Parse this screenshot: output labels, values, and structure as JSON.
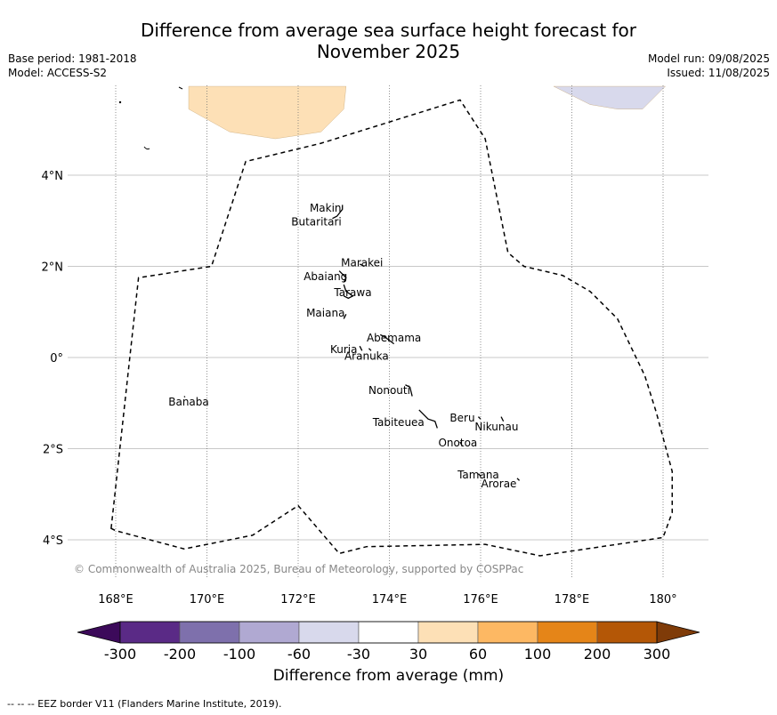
{
  "title": {
    "line1": "Difference from average sea surface height forecast for",
    "line2": "November 2025"
  },
  "meta_left": {
    "base_period": "Base period: 1981-2018",
    "model": "Model: ACCESS-S2"
  },
  "meta_right": {
    "model_run": "Model run: 09/08/2025",
    "issued": "Issued: 11/08/2025"
  },
  "map": {
    "lon_ticks": [
      "168°E",
      "170°E",
      "172°E",
      "174°E",
      "176°E",
      "178°E",
      "180°"
    ],
    "lat_ticks": [
      "4°N",
      "2°N",
      "0°",
      "2°S",
      "4°S"
    ],
    "copyright": "© Commonwealth of Australia 2025, Bureau of Meteorology, supported by COSPPac",
    "places": [
      {
        "name": "Makin",
        "lon": 172.6,
        "lat": 3.2
      },
      {
        "name": "Butaritari",
        "lon": 172.4,
        "lat": 2.9
      },
      {
        "name": "Marakei",
        "lon": 173.4,
        "lat": 2.0
      },
      {
        "name": "Abaiang",
        "lon": 172.6,
        "lat": 1.7
      },
      {
        "name": "Tarawa",
        "lon": 173.2,
        "lat": 1.35
      },
      {
        "name": "Maiana",
        "lon": 172.6,
        "lat": 0.9
      },
      {
        "name": "Abemama",
        "lon": 174.1,
        "lat": 0.35
      },
      {
        "name": "Kuria",
        "lon": 173.0,
        "lat": 0.1
      },
      {
        "name": "Aranuka",
        "lon": 173.5,
        "lat": -0.05
      },
      {
        "name": "Nonouti",
        "lon": 174.0,
        "lat": -0.8
      },
      {
        "name": "Banaba",
        "lon": 169.6,
        "lat": -1.05
      },
      {
        "name": "Beru",
        "lon": 175.6,
        "lat": -1.4
      },
      {
        "name": "Nikunau",
        "lon": 176.35,
        "lat": -1.6
      },
      {
        "name": "Tabiteuea",
        "lon": 174.2,
        "lat": -1.5
      },
      {
        "name": "Onotoa",
        "lon": 175.5,
        "lat": -1.95
      },
      {
        "name": "Tamana",
        "lon": 175.95,
        "lat": -2.65
      },
      {
        "name": "Arorae",
        "lon": 176.4,
        "lat": -2.85
      }
    ],
    "eez_border": [
      [
        167.9,
        -3.75
      ],
      [
        168.5,
        1.75
      ],
      [
        170.1,
        2.0
      ],
      [
        170.85,
        4.3
      ],
      [
        172.5,
        4.7
      ],
      [
        175.55,
        5.65
      ],
      [
        176.1,
        4.8
      ],
      [
        176.6,
        2.3
      ],
      [
        176.95,
        2.0
      ],
      [
        177.8,
        1.8
      ],
      [
        178.4,
        1.45
      ],
      [
        179.0,
        0.85
      ],
      [
        179.6,
        -0.4
      ],
      [
        179.85,
        -1.2
      ],
      [
        180.2,
        -2.5
      ],
      [
        180.2,
        -3.4
      ],
      [
        180.0,
        -3.95
      ],
      [
        177.3,
        -4.35
      ],
      [
        176.1,
        -4.1
      ],
      [
        173.5,
        -4.15
      ],
      [
        172.9,
        -4.3
      ],
      [
        172.0,
        -3.25
      ],
      [
        171.0,
        -3.9
      ],
      [
        169.5,
        -4.2
      ],
      [
        168.0,
        -3.8
      ]
    ],
    "atolls": [
      [
        [
          172.97,
          3.35
        ],
        [
          172.97,
          3.25
        ],
        [
          172.85,
          3.1
        ],
        [
          172.75,
          3.05
        ]
      ],
      [
        [
          173.35,
          2.05
        ],
        [
          173.45,
          2.0
        ]
      ],
      [
        [
          172.9,
          1.9
        ],
        [
          173.05,
          1.75
        ],
        [
          173.0,
          1.65
        ]
      ],
      [
        [
          173.0,
          1.6
        ],
        [
          173.05,
          1.45
        ],
        [
          173.2,
          1.35
        ],
        [
          173.1,
          1.3
        ],
        [
          173.0,
          1.35
        ]
      ],
      [
        [
          173.05,
          0.95
        ],
        [
          173.0,
          0.85
        ]
      ],
      [
        [
          173.8,
          0.5
        ],
        [
          173.9,
          0.45
        ],
        [
          174.1,
          0.3
        ]
      ],
      [
        [
          173.35,
          0.25
        ],
        [
          173.4,
          0.15
        ]
      ],
      [
        [
          173.55,
          0.2
        ],
        [
          173.6,
          0.15
        ]
      ],
      [
        [
          174.35,
          -0.6
        ],
        [
          174.45,
          -0.65
        ],
        [
          174.5,
          -0.85
        ]
      ],
      [
        [
          174.65,
          -1.15
        ],
        [
          174.85,
          -1.35
        ],
        [
          175.0,
          -1.4
        ],
        [
          175.05,
          -1.55
        ]
      ],
      [
        [
          175.95,
          -1.3
        ],
        [
          176.0,
          -1.35
        ]
      ],
      [
        [
          176.45,
          -1.3
        ],
        [
          176.5,
          -1.4
        ]
      ],
      [
        [
          175.55,
          -1.85
        ],
        [
          175.6,
          -1.95
        ]
      ],
      [
        [
          175.95,
          -2.55
        ],
        [
          176.0,
          -2.6
        ]
      ],
      [
        [
          176.8,
          -2.65
        ],
        [
          176.85,
          -2.7
        ]
      ],
      [
        [
          169.5,
          -0.85
        ],
        [
          169.52,
          -0.87
        ]
      ]
    ],
    "anomaly_patches": [
      {
        "class": "30 to 60",
        "color": "#fde0b6",
        "points": [
          [
            169.6,
            5.95
          ],
          [
            173.05,
            5.95
          ],
          [
            173.0,
            5.45
          ],
          [
            172.5,
            4.95
          ],
          [
            171.5,
            4.8
          ],
          [
            170.5,
            4.95
          ],
          [
            169.6,
            5.45
          ]
        ]
      },
      {
        "class": "-30 to -60",
        "color": "#d8d9ec",
        "points": [
          [
            178.55,
            5.95
          ],
          [
            180.05,
            5.95
          ],
          [
            179.55,
            5.45
          ],
          [
            179.0,
            5.45
          ],
          [
            178.4,
            5.55
          ],
          [
            178.0,
            5.75
          ],
          [
            177.6,
            5.95
          ]
        ]
      }
    ],
    "lon_range": [
      167.0,
      181.0
    ],
    "lat_range": [
      -4.8,
      6.0
    ]
  },
  "colorbar": {
    "boundaries": [
      "-300",
      "-200",
      "-100",
      "-60",
      "-30",
      "30",
      "60",
      "100",
      "200",
      "300"
    ],
    "colors": [
      "#5a2a86",
      "#7e70ac",
      "#b0a9d2",
      "#d8d9ec",
      "#ffffff",
      "#fde0b6",
      "#fdb863",
      "#e58518",
      "#b45706"
    ],
    "under_color": "#3c0a5a",
    "over_color": "#7f3b08",
    "label": "Difference from average (mm)"
  },
  "footer": "--  --  -- EEZ border V11 (Flanders Marine Institute, 2019)."
}
